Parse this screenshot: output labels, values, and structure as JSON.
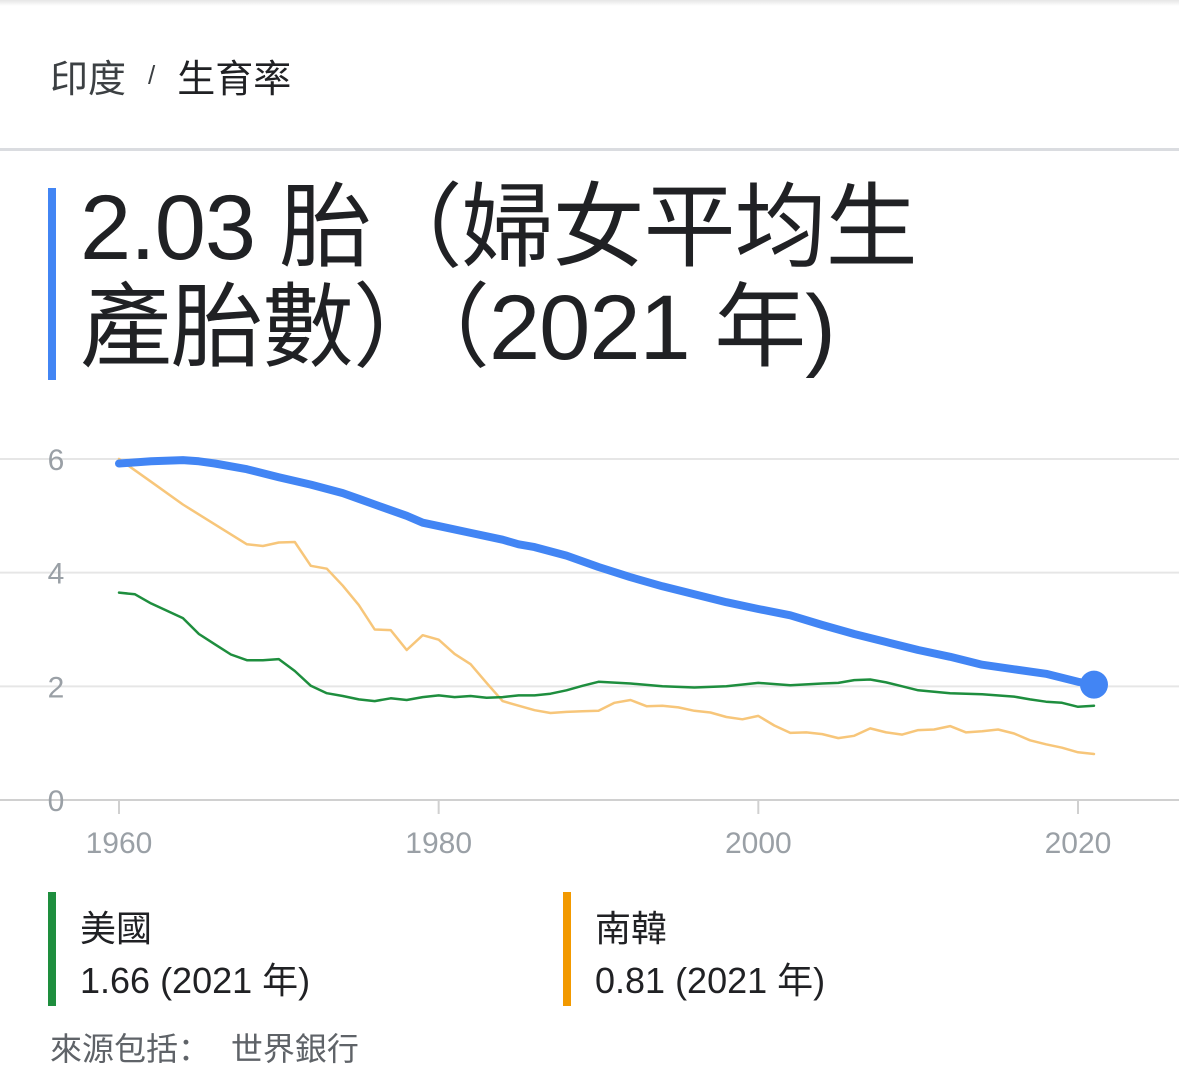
{
  "breadcrumb": {
    "country": "印度",
    "separator": "/",
    "indicator": "生育率"
  },
  "headline": {
    "line1": "2.03 胎（婦女平均生",
    "line2": "產胎數）（2021 年)"
  },
  "legend": [
    {
      "name": "美國",
      "value": "1.66 (2021 年)",
      "color": "#1e8e3e"
    },
    {
      "name": "南韓",
      "value": "0.81 (2021 年)",
      "color": "#f29900"
    }
  ],
  "source": {
    "label": "來源包括：",
    "name": "世界銀行"
  },
  "chart_data": {
    "type": "line",
    "xlabel": "",
    "ylabel": "",
    "xlim": [
      1960,
      2021
    ],
    "ylim": [
      0,
      6
    ],
    "x_ticks": [
      1960,
      1980,
      2000,
      2020
    ],
    "y_ticks": [
      0,
      2,
      4,
      6
    ],
    "grid": true,
    "series": [
      {
        "name": "印度",
        "color": "#4285f4",
        "highlight_last": true,
        "points": [
          [
            1960,
            5.92
          ],
          [
            1962,
            5.96
          ],
          [
            1964,
            5.98
          ],
          [
            1965,
            5.96
          ],
          [
            1966,
            5.92
          ],
          [
            1968,
            5.82
          ],
          [
            1970,
            5.68
          ],
          [
            1972,
            5.55
          ],
          [
            1974,
            5.4
          ],
          [
            1975,
            5.3
          ],
          [
            1976,
            5.2
          ],
          [
            1978,
            5.0
          ],
          [
            1979,
            4.88
          ],
          [
            1980,
            4.82
          ],
          [
            1982,
            4.7
          ],
          [
            1984,
            4.58
          ],
          [
            1985,
            4.5
          ],
          [
            1986,
            4.45
          ],
          [
            1988,
            4.3
          ],
          [
            1990,
            4.1
          ],
          [
            1992,
            3.92
          ],
          [
            1994,
            3.76
          ],
          [
            1996,
            3.62
          ],
          [
            1998,
            3.48
          ],
          [
            2000,
            3.36
          ],
          [
            2002,
            3.25
          ],
          [
            2004,
            3.08
          ],
          [
            2006,
            2.92
          ],
          [
            2008,
            2.78
          ],
          [
            2010,
            2.64
          ],
          [
            2012,
            2.52
          ],
          [
            2013,
            2.45
          ],
          [
            2014,
            2.38
          ],
          [
            2016,
            2.3
          ],
          [
            2018,
            2.22
          ],
          [
            2020,
            2.08
          ],
          [
            2021,
            2.03
          ]
        ]
      },
      {
        "name": "美國",
        "color": "#1e8e3e",
        "points": [
          [
            1960,
            3.65
          ],
          [
            1961,
            3.62
          ],
          [
            1962,
            3.46
          ],
          [
            1964,
            3.2
          ],
          [
            1965,
            2.92
          ],
          [
            1966,
            2.74
          ],
          [
            1967,
            2.56
          ],
          [
            1968,
            2.46
          ],
          [
            1969,
            2.46
          ],
          [
            1970,
            2.48
          ],
          [
            1971,
            2.27
          ],
          [
            1972,
            2.01
          ],
          [
            1973,
            1.88
          ],
          [
            1974,
            1.83
          ],
          [
            1975,
            1.77
          ],
          [
            1976,
            1.74
          ],
          [
            1977,
            1.79
          ],
          [
            1978,
            1.76
          ],
          [
            1979,
            1.81
          ],
          [
            1980,
            1.84
          ],
          [
            1981,
            1.81
          ],
          [
            1982,
            1.83
          ],
          [
            1983,
            1.8
          ],
          [
            1984,
            1.81
          ],
          [
            1985,
            1.84
          ],
          [
            1986,
            1.84
          ],
          [
            1987,
            1.87
          ],
          [
            1988,
            1.93
          ],
          [
            1989,
            2.01
          ],
          [
            1990,
            2.08
          ],
          [
            1992,
            2.05
          ],
          [
            1994,
            2.0
          ],
          [
            1996,
            1.98
          ],
          [
            1998,
            2.0
          ],
          [
            2000,
            2.06
          ],
          [
            2002,
            2.02
          ],
          [
            2004,
            2.05
          ],
          [
            2005,
            2.06
          ],
          [
            2006,
            2.11
          ],
          [
            2007,
            2.12
          ],
          [
            2008,
            2.07
          ],
          [
            2009,
            2.0
          ],
          [
            2010,
            1.93
          ],
          [
            2012,
            1.88
          ],
          [
            2014,
            1.86
          ],
          [
            2016,
            1.82
          ],
          [
            2017,
            1.77
          ],
          [
            2018,
            1.73
          ],
          [
            2019,
            1.71
          ],
          [
            2020,
            1.64
          ],
          [
            2021,
            1.66
          ]
        ]
      },
      {
        "name": "南韓",
        "color": "#f7c67a",
        "points": [
          [
            1960,
            6.0
          ],
          [
            1962,
            5.6
          ],
          [
            1964,
            5.2
          ],
          [
            1966,
            4.85
          ],
          [
            1968,
            4.5
          ],
          [
            1969,
            4.47
          ],
          [
            1970,
            4.53
          ],
          [
            1971,
            4.54
          ],
          [
            1972,
            4.12
          ],
          [
            1973,
            4.07
          ],
          [
            1974,
            3.77
          ],
          [
            1975,
            3.43
          ],
          [
            1976,
            3.0
          ],
          [
            1977,
            2.99
          ],
          [
            1978,
            2.64
          ],
          [
            1979,
            2.9
          ],
          [
            1980,
            2.82
          ],
          [
            1981,
            2.57
          ],
          [
            1982,
            2.39
          ],
          [
            1983,
            2.06
          ],
          [
            1984,
            1.74
          ],
          [
            1985,
            1.66
          ],
          [
            1986,
            1.58
          ],
          [
            1987,
            1.53
          ],
          [
            1988,
            1.55
          ],
          [
            1989,
            1.56
          ],
          [
            1990,
            1.57
          ],
          [
            1991,
            1.71
          ],
          [
            1992,
            1.76
          ],
          [
            1993,
            1.65
          ],
          [
            1994,
            1.66
          ],
          [
            1995,
            1.63
          ],
          [
            1996,
            1.57
          ],
          [
            1997,
            1.54
          ],
          [
            1998,
            1.46
          ],
          [
            1999,
            1.42
          ],
          [
            2000,
            1.48
          ],
          [
            2001,
            1.31
          ],
          [
            2002,
            1.18
          ],
          [
            2003,
            1.19
          ],
          [
            2004,
            1.16
          ],
          [
            2005,
            1.09
          ],
          [
            2006,
            1.13
          ],
          [
            2007,
            1.26
          ],
          [
            2008,
            1.19
          ],
          [
            2009,
            1.15
          ],
          [
            2010,
            1.23
          ],
          [
            2011,
            1.24
          ],
          [
            2012,
            1.3
          ],
          [
            2013,
            1.19
          ],
          [
            2014,
            1.21
          ],
          [
            2015,
            1.24
          ],
          [
            2016,
            1.17
          ],
          [
            2017,
            1.05
          ],
          [
            2018,
            0.98
          ],
          [
            2019,
            0.92
          ],
          [
            2020,
            0.84
          ],
          [
            2021,
            0.81
          ]
        ]
      }
    ]
  }
}
